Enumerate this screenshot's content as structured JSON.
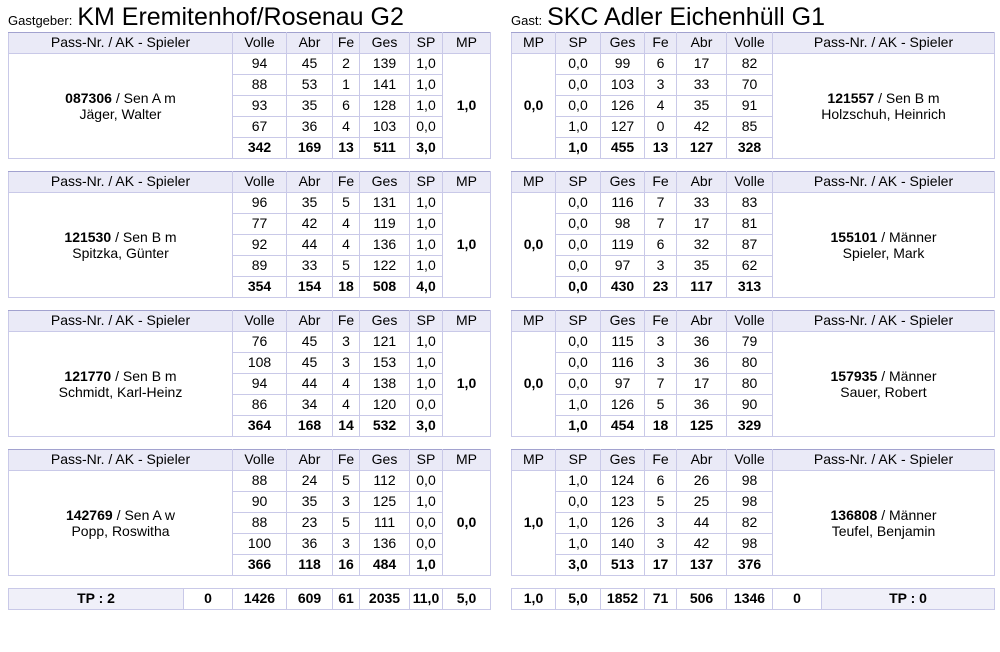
{
  "header": {
    "host_label": "Gastgeber:",
    "host_team": "KM Eremitenhof/Rosenau G2",
    "guest_label": "Gast:",
    "guest_team": "SKC Adler Eichenhüll G1"
  },
  "columns": {
    "player": "Pass-Nr. / AK - Spieler",
    "volle": "Volle",
    "abr": "Abr",
    "fe": "Fe",
    "ges": "Ges",
    "sp": "SP",
    "mp": "MP"
  },
  "host": {
    "blocks": [
      {
        "pass": "087306",
        "class": "/ Sen A m",
        "name": "Jäger, Walter",
        "mp": "1,0",
        "rows": [
          [
            "94",
            "45",
            "2",
            "139",
            "1,0"
          ],
          [
            "88",
            "53",
            "1",
            "141",
            "1,0"
          ],
          [
            "93",
            "35",
            "6",
            "128",
            "1,0"
          ],
          [
            "67",
            "36",
            "4",
            "103",
            "0,0"
          ]
        ],
        "total": [
          "342",
          "169",
          "13",
          "511",
          "3,0"
        ]
      },
      {
        "pass": "121530",
        "class": "/ Sen B m",
        "name": "Spitzka, Günter",
        "mp": "1,0",
        "rows": [
          [
            "96",
            "35",
            "5",
            "131",
            "1,0"
          ],
          [
            "77",
            "42",
            "4",
            "119",
            "1,0"
          ],
          [
            "92",
            "44",
            "4",
            "136",
            "1,0"
          ],
          [
            "89",
            "33",
            "5",
            "122",
            "1,0"
          ]
        ],
        "total": [
          "354",
          "154",
          "18",
          "508",
          "4,0"
        ]
      },
      {
        "pass": "121770",
        "class": "/ Sen B m",
        "name": "Schmidt, Karl-Heinz",
        "mp": "1,0",
        "rows": [
          [
            "76",
            "45",
            "3",
            "121",
            "1,0"
          ],
          [
            "108",
            "45",
            "3",
            "153",
            "1,0"
          ],
          [
            "94",
            "44",
            "4",
            "138",
            "1,0"
          ],
          [
            "86",
            "34",
            "4",
            "120",
            "0,0"
          ]
        ],
        "total": [
          "364",
          "168",
          "14",
          "532",
          "3,0"
        ]
      },
      {
        "pass": "142769",
        "class": "/ Sen A w",
        "name": "Popp, Roswitha",
        "mp": "0,0",
        "rows": [
          [
            "88",
            "24",
            "5",
            "112",
            "0,0"
          ],
          [
            "90",
            "35",
            "3",
            "125",
            "1,0"
          ],
          [
            "88",
            "23",
            "5",
            "111",
            "0,0"
          ],
          [
            "100",
            "36",
            "3",
            "136",
            "0,0"
          ]
        ],
        "total": [
          "366",
          "118",
          "16",
          "484",
          "1,0"
        ]
      }
    ],
    "footer": {
      "tp": "TP : 2",
      "extra": "0",
      "volle": "1426",
      "abr": "609",
      "fe": "61",
      "ges": "2035",
      "sp": "11,0",
      "mp": "5,0"
    }
  },
  "guest": {
    "blocks": [
      {
        "pass": "121557",
        "class": "/ Sen B m",
        "name": "Holzschuh, Heinrich",
        "mp": "0,0",
        "rows": [
          [
            "0,0",
            "99",
            "6",
            "17",
            "82"
          ],
          [
            "0,0",
            "103",
            "3",
            "33",
            "70"
          ],
          [
            "0,0",
            "126",
            "4",
            "35",
            "91"
          ],
          [
            "1,0",
            "127",
            "0",
            "42",
            "85"
          ]
        ],
        "total": [
          "1,0",
          "455",
          "13",
          "127",
          "328"
        ]
      },
      {
        "pass": "155101",
        "class": "/ Männer",
        "name": "Spieler, Mark",
        "mp": "0,0",
        "rows": [
          [
            "0,0",
            "116",
            "7",
            "33",
            "83"
          ],
          [
            "0,0",
            "98",
            "7",
            "17",
            "81"
          ],
          [
            "0,0",
            "119",
            "6",
            "32",
            "87"
          ],
          [
            "0,0",
            "97",
            "3",
            "35",
            "62"
          ]
        ],
        "total": [
          "0,0",
          "430",
          "23",
          "117",
          "313"
        ]
      },
      {
        "pass": "157935",
        "class": "/ Männer",
        "name": "Sauer, Robert",
        "mp": "0,0",
        "rows": [
          [
            "0,0",
            "115",
            "3",
            "36",
            "79"
          ],
          [
            "0,0",
            "116",
            "3",
            "36",
            "80"
          ],
          [
            "0,0",
            "97",
            "7",
            "17",
            "80"
          ],
          [
            "1,0",
            "126",
            "5",
            "36",
            "90"
          ]
        ],
        "total": [
          "1,0",
          "454",
          "18",
          "125",
          "329"
        ]
      },
      {
        "pass": "136808",
        "class": "/ Männer",
        "name": "Teufel, Benjamin",
        "mp": "1,0",
        "rows": [
          [
            "1,0",
            "124",
            "6",
            "26",
            "98"
          ],
          [
            "0,0",
            "123",
            "5",
            "25",
            "98"
          ],
          [
            "1,0",
            "126",
            "3",
            "44",
            "82"
          ],
          [
            "1,0",
            "140",
            "3",
            "42",
            "98"
          ]
        ],
        "total": [
          "3,0",
          "513",
          "17",
          "137",
          "376"
        ]
      }
    ],
    "footer": {
      "mp": "1,0",
      "sp": "5,0",
      "ges": "1852",
      "fe": "71",
      "abr": "506",
      "volle": "1346",
      "extra": "0",
      "tp": "TP : 0"
    }
  },
  "colors": {
    "header_bg": "#eaeaf7",
    "border_outer": "#a2a2cf",
    "grid_line": "#c9c9e8",
    "tp_cell_bg": "#f0f0f9",
    "text": "#000000"
  }
}
